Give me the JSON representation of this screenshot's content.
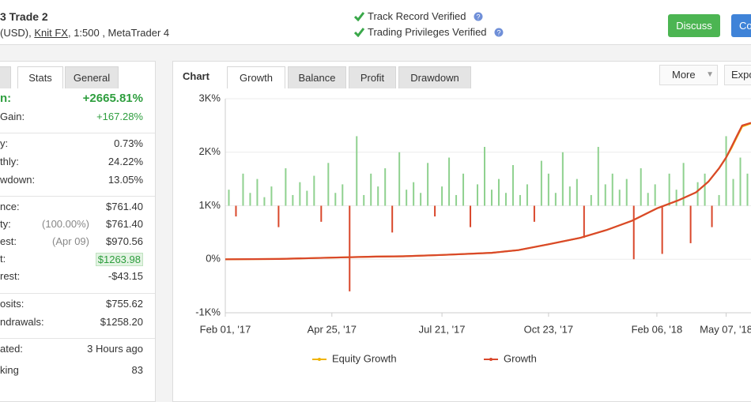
{
  "header": {
    "title": "3 Trade 2",
    "currency": "(USD),",
    "broker": "Knit FX",
    "details": ", 1:500 , MetaTrader 4",
    "verifications": [
      "Track Record Verified",
      "Trading Privileges Verified"
    ],
    "buttons": [
      "Discuss",
      "Co"
    ]
  },
  "stats_panel": {
    "tabs": [
      "Stats",
      "General"
    ],
    "groups": [
      [
        {
          "label": "n:",
          "value": "+2665.81%",
          "tone": "strong"
        },
        {
          "label": "Gain:",
          "value": "+167.28%",
          "tone": "green"
        }
      ],
      [
        {
          "label": "y:",
          "value": "0.73%"
        },
        {
          "label": "thly:",
          "value": "24.22%"
        },
        {
          "label": "wdown:",
          "value": "13.05%"
        }
      ],
      [
        {
          "label": "nce:",
          "value": "$761.40"
        },
        {
          "label": "ty:",
          "note": "(100.00%)",
          "value": "$761.40"
        },
        {
          "label": "est:",
          "note": "(Apr 09)",
          "value": "$970.56"
        },
        {
          "label": "t:",
          "value": "$1263.98",
          "tone": "boxed"
        },
        {
          "label": "rest:",
          "value": "-$43.15"
        }
      ],
      [
        {
          "label": "osits:",
          "value": "$755.62"
        },
        {
          "label": "ndrawals:",
          "value": "$1258.20"
        }
      ],
      [
        {
          "label": "ated:",
          "value": "3 Hours ago"
        },
        {
          "label": "king",
          "value": "83"
        }
      ]
    ]
  },
  "chart_panel": {
    "label": "Chart",
    "tabs": [
      "Growth",
      "Balance",
      "Profit",
      "Drawdown"
    ],
    "active_tab": 0,
    "buttons": [
      "More",
      "Expo"
    ]
  },
  "chart_data": {
    "type": "line",
    "x": [
      0,
      30,
      60,
      85,
      100,
      122,
      150,
      165,
      182,
      200,
      215,
      229,
      243,
      255,
      265,
      272,
      278,
      282,
      285,
      288,
      291,
      296
    ],
    "series": [
      {
        "name": "Equity Growth",
        "color": "#f0b400",
        "values": [
          0,
          5,
          30,
          50,
          55,
          80,
          120,
          170,
          280,
          400,
          550,
          720,
          950,
          1100,
          1250,
          1450,
          1700,
          1900,
          2080,
          2280,
          2480,
          2540
        ]
      },
      {
        "name": "Growth",
        "color": "#d9472b",
        "values": [
          0,
          5,
          30,
          50,
          55,
          80,
          120,
          170,
          280,
          400,
          550,
          720,
          950,
          1100,
          1250,
          1450,
          1700,
          1900,
          2100,
          2300,
          2500,
          2550
        ]
      }
    ],
    "bars": {
      "axis": "y2",
      "up_color": "#8fd18f",
      "down_color": "#d9472b",
      "x": [
        2,
        6,
        10,
        14,
        18,
        22,
        26,
        30,
        34,
        38,
        42,
        46,
        50,
        54,
        58,
        62,
        66,
        70,
        74,
        78,
        82,
        86,
        90,
        94,
        98,
        102,
        106,
        110,
        114,
        118,
        122,
        126,
        130,
        134,
        138,
        142,
        146,
        150,
        154,
        158,
        162,
        166,
        170,
        174,
        178,
        182,
        186,
        190,
        194,
        198,
        202,
        206,
        210,
        214,
        218,
        222,
        226,
        230,
        234,
        238,
        242,
        246,
        250,
        254,
        258,
        262,
        266,
        270,
        274,
        278,
        282,
        286,
        290,
        294
      ],
      "values": [
        0.15,
        -0.1,
        0.3,
        0.12,
        0.25,
        0.08,
        0.18,
        -0.2,
        0.35,
        0.1,
        0.22,
        0.14,
        0.28,
        -0.15,
        0.4,
        0.12,
        0.2,
        -0.8,
        0.65,
        0.1,
        0.3,
        0.18,
        0.35,
        -0.25,
        0.5,
        0.15,
        0.22,
        0.12,
        0.4,
        -0.1,
        0.18,
        0.45,
        0.1,
        0.3,
        -0.2,
        0.2,
        0.55,
        0.15,
        0.25,
        0.12,
        0.38,
        0.1,
        0.2,
        -0.15,
        0.42,
        0.3,
        0.12,
        0.5,
        0.18,
        0.25,
        -0.3,
        0.1,
        0.55,
        0.2,
        0.3,
        0.15,
        0.25,
        -0.5,
        0.35,
        0.12,
        0.2,
        -0.45,
        0.3,
        0.15,
        0.4,
        -0.35,
        0.22,
        0.3,
        -0.2,
        0.1,
        0.65,
        0.25,
        0.45,
        0.3
      ]
    },
    "xlim": [
      0,
      296
    ],
    "xticks": [
      {
        "value": 0,
        "label": "Feb 01, '17"
      },
      {
        "value": 60,
        "label": "Apr 25, '17"
      },
      {
        "value": 122,
        "label": "Jul 21, '17"
      },
      {
        "value": 182,
        "label": "Oct 23, '17"
      },
      {
        "value": 243,
        "label": "Feb 06, '18"
      },
      {
        "value": 282,
        "label": "May 07, '18"
      }
    ],
    "ylim": [
      -1000,
      3000
    ],
    "yticks": [
      {
        "value": -1000,
        "label": "-1K%"
      },
      {
        "value": 0,
        "label": "0%"
      },
      {
        "value": 1000,
        "label": "1K%"
      },
      {
        "value": 2000,
        "label": "2K%"
      },
      {
        "value": 3000,
        "label": "3K%"
      }
    ],
    "y2lim": [
      -1,
      1
    ],
    "grid": true
  }
}
